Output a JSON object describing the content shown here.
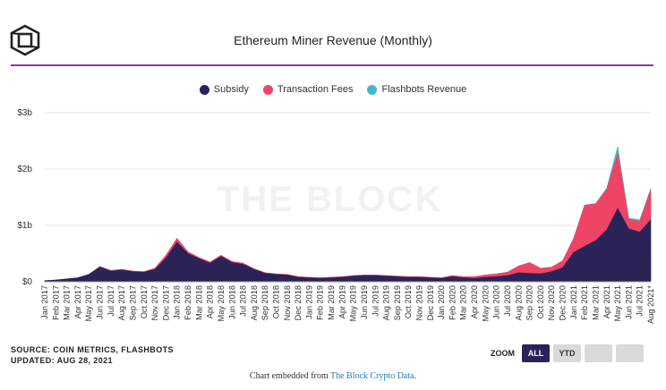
{
  "header": {
    "title": "Ethereum Miner Revenue (Monthly)"
  },
  "watermark": "THE BLOCK",
  "footer": {
    "source": "SOURCE: COIN METRICS, FLASHBOTS",
    "updated": "UPDATED: AUG 28, 2021"
  },
  "zoom": {
    "label": "ZOOM",
    "buttons": [
      "ALL",
      "YTD",
      "",
      ""
    ],
    "active": "ALL"
  },
  "embed": {
    "prefix": "Chart embedded from ",
    "link": "The Block Crypto Data",
    "suffix": "."
  },
  "colors": {
    "subsidy": "#2b2358",
    "fees": "#ee4466",
    "flashbots": "#45b8c8",
    "accent_rule": "#8a3a9c"
  },
  "chart_data": {
    "type": "area",
    "stacked": true,
    "x": [
      "Jan 2017",
      "Feb 2017",
      "Mar 2017",
      "Apr 2017",
      "May 2017",
      "Jun 2017",
      "Jul 2017",
      "Aug 2017",
      "Sep 2017",
      "Oct 2017",
      "Nov 2017",
      "Dec 2017",
      "Jan 2018",
      "Feb 2018",
      "Mar 2018",
      "Apr 2018",
      "May 2018",
      "Jun 2018",
      "Jul 2018",
      "Aug 2018",
      "Sep 2018",
      "Oct 2018",
      "Nov 2018",
      "Dec 2018",
      "Jan 2019",
      "Feb 2019",
      "Mar 2019",
      "Apr 2019",
      "May 2019",
      "Jun 2019",
      "Jul 2019",
      "Aug 2019",
      "Sep 2019",
      "Oct 2019",
      "Nov 2019",
      "Dec 2019",
      "Jan 2020",
      "Feb 2020",
      "Mar 2020",
      "Apr 2020",
      "May 2020",
      "Jun 2020",
      "Jul 2020",
      "Aug 2020",
      "Sep 2020",
      "Oct 2020",
      "Nov 2020",
      "Dec 2020",
      "Jan 2021",
      "Feb 2021",
      "Mar 2021",
      "Apr 2021",
      "May 2021",
      "Jun 2021",
      "Jul 2021",
      "Aug 2021*"
    ],
    "series": [
      {
        "name": "Subsidy",
        "values": [
          0.02,
          0.03,
          0.05,
          0.07,
          0.13,
          0.26,
          0.19,
          0.21,
          0.18,
          0.17,
          0.22,
          0.42,
          0.7,
          0.5,
          0.41,
          0.33,
          0.45,
          0.34,
          0.31,
          0.22,
          0.15,
          0.13,
          0.12,
          0.08,
          0.07,
          0.06,
          0.07,
          0.08,
          0.1,
          0.11,
          0.11,
          0.1,
          0.09,
          0.08,
          0.08,
          0.07,
          0.06,
          0.09,
          0.07,
          0.06,
          0.08,
          0.09,
          0.11,
          0.16,
          0.15,
          0.14,
          0.18,
          0.25,
          0.52,
          0.63,
          0.73,
          0.92,
          1.3,
          0.94,
          0.88,
          1.1
        ]
      },
      {
        "name": "Transaction Fees",
        "values": [
          0,
          0,
          0,
          0,
          0,
          0.01,
          0.01,
          0.01,
          0.01,
          0.01,
          0.02,
          0.05,
          0.07,
          0.03,
          0.02,
          0.02,
          0.02,
          0.02,
          0.02,
          0.01,
          0.01,
          0.01,
          0.01,
          0.01,
          0.01,
          0.01,
          0.01,
          0.01,
          0.01,
          0.01,
          0.01,
          0.01,
          0.01,
          0.01,
          0.01,
          0.01,
          0.01,
          0.02,
          0.02,
          0.03,
          0.04,
          0.05,
          0.06,
          0.12,
          0.19,
          0.1,
          0.08,
          0.12,
          0.25,
          0.73,
          0.65,
          0.72,
          0.98,
          0.17,
          0.19,
          0.53
        ]
      },
      {
        "name": "Flashbots Revenue",
        "values": [
          0,
          0,
          0,
          0,
          0,
          0,
          0,
          0,
          0,
          0,
          0,
          0,
          0,
          0,
          0,
          0,
          0,
          0,
          0,
          0,
          0,
          0,
          0,
          0,
          0,
          0,
          0,
          0,
          0,
          0,
          0,
          0,
          0,
          0,
          0,
          0,
          0,
          0,
          0,
          0,
          0,
          0,
          0,
          0,
          0,
          0,
          0,
          0,
          0,
          0,
          0.01,
          0.02,
          0.12,
          0.02,
          0.03,
          0.03
        ]
      }
    ],
    "y_ticks": [
      0,
      1,
      2,
      3
    ],
    "y_tick_labels": [
      "$0",
      "$1b",
      "$2b",
      "$3b"
    ],
    "ylim": [
      0,
      3
    ],
    "legend_position": "top-center",
    "grid": true
  }
}
